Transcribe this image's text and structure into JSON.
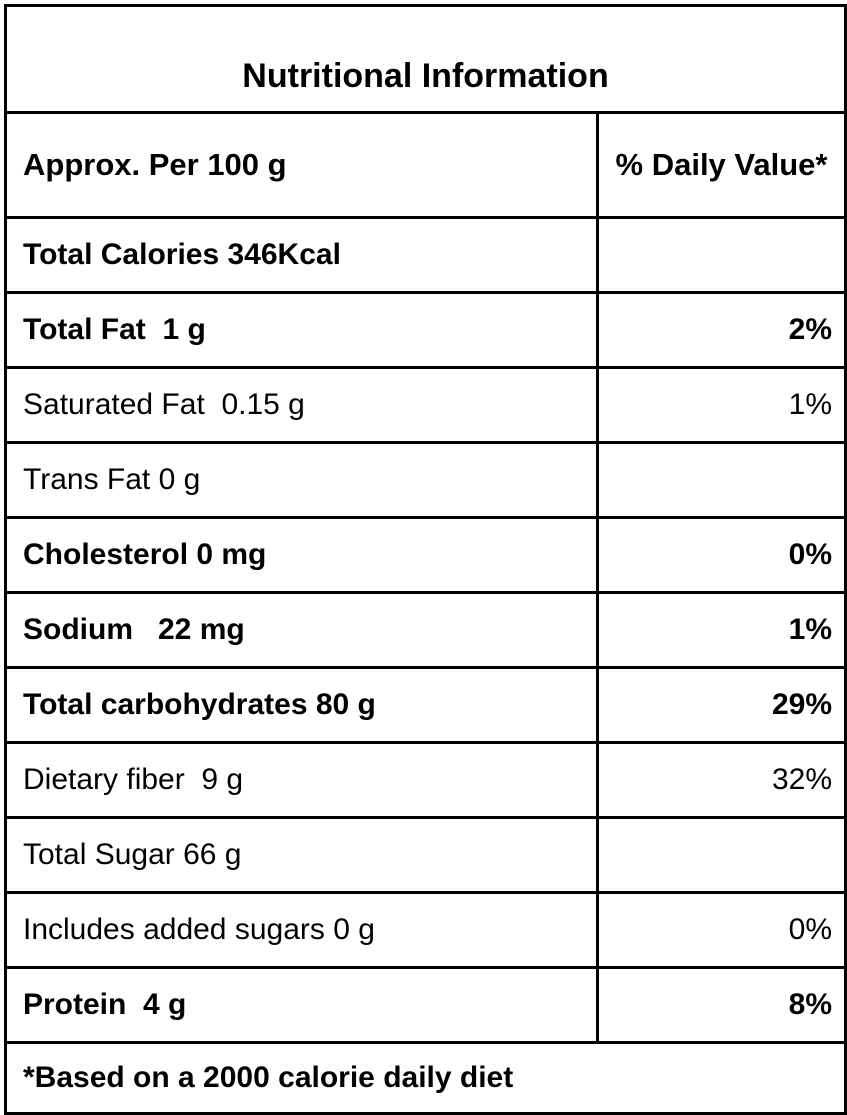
{
  "title": "Nutritional Information",
  "header": {
    "label_col": "Approx. Per 100 g",
    "value_col": "% Daily Value*"
  },
  "rows": [
    {
      "label": "Total Calories 346Kcal",
      "value": ""
    },
    {
      "label": "Total Fat  1 g",
      "value": "2%"
    },
    {
      "label": "Saturated Fat  0.15 g",
      "value": "1%"
    },
    {
      "label": "Trans Fat 0 g",
      "value": ""
    },
    {
      "label": "Cholesterol 0 mg",
      "value": "0%"
    },
    {
      "label": "Sodium   22 mg",
      "value": "1%"
    },
    {
      "label": "Total carbohydrates 80 g",
      "value": "29%"
    },
    {
      "label": "Dietary fiber  9 g",
      "value": "32%"
    },
    {
      "label": "Total Sugar 66 g",
      "value": ""
    },
    {
      "label": "Includes added sugars 0 g",
      "value": "0%"
    },
    {
      "label": "Protein  4 g",
      "value": "8%"
    }
  ],
  "footnote": "*Based on a 2000 calorie daily diet",
  "colors": {
    "border": "#000000",
    "text": "#000000",
    "background": "#ffffff"
  }
}
